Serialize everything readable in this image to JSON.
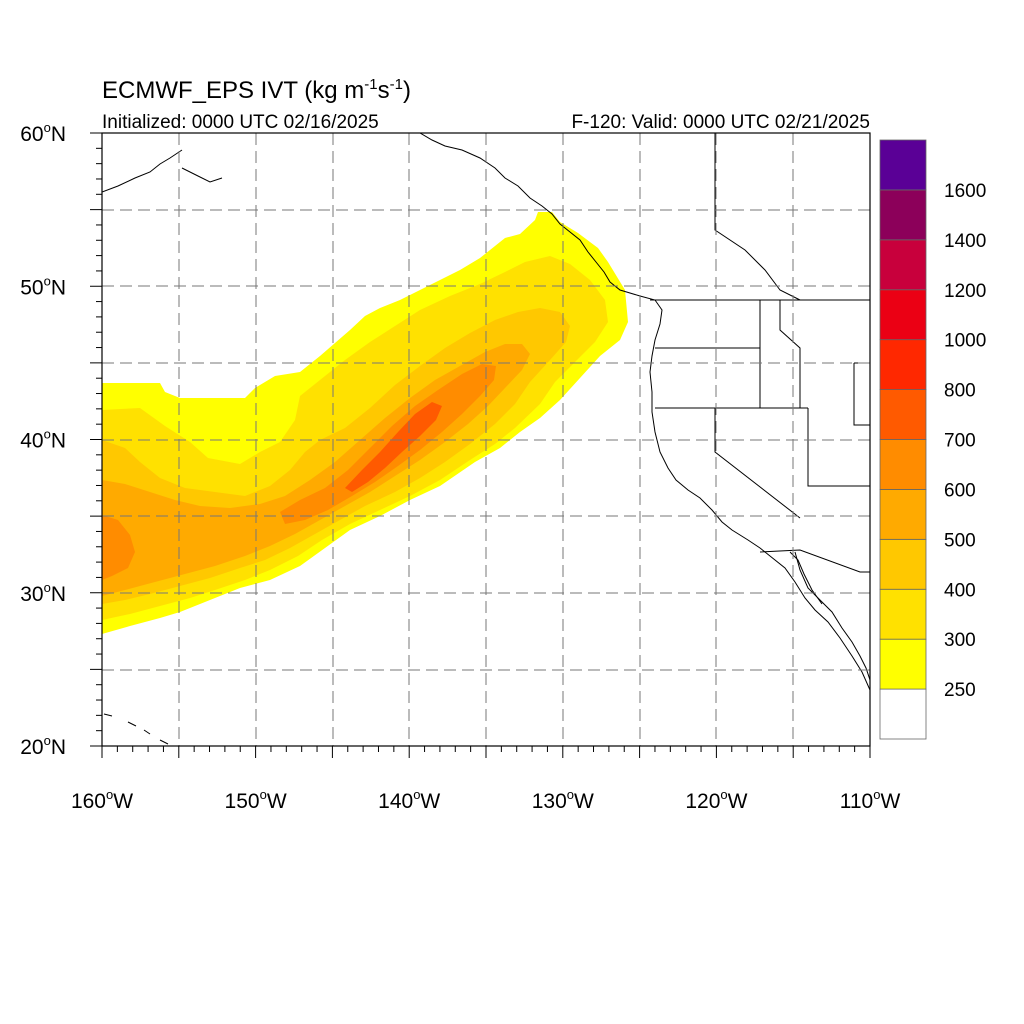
{
  "title": {
    "main": "ECMWF_EPS IVT",
    "units_prefix": "(kg m",
    "units_exp1": "-1",
    "units_mid": "s",
    "units_exp2": "-1",
    "units_suffix": ")"
  },
  "subtitle_left": "Initialized: 0000 UTC 02/16/2025",
  "subtitle_right": "F-120: Valid: 0000 UTC 02/21/2025",
  "map": {
    "lon_range": [
      -160,
      -110
    ],
    "lat_range": [
      20,
      60
    ],
    "grid": true,
    "lat_labels": [
      "20",
      "30",
      "40",
      "50",
      "60"
    ],
    "lat_hemi": "N",
    "lon_labels": [
      "160",
      "150",
      "140",
      "130",
      "120",
      "110"
    ],
    "lon_hemi": "W",
    "degree_symbol": "o"
  },
  "colorbar": {
    "labels": [
      "250",
      "300",
      "400",
      "500",
      "600",
      "700",
      "800",
      "1000",
      "1200",
      "1400",
      "1600"
    ],
    "colors": [
      "#ffffff",
      "#ffff00",
      "#ffe100",
      "#ffc800",
      "#ffaa00",
      "#ff8c00",
      "#ff5a00",
      "#ff2800",
      "#eb0014",
      "#c8003c",
      "#8c005a",
      "#5a0096"
    ]
  },
  "plume": {
    "description_levels": [
      "250-300",
      "300-400",
      "400-500",
      "500-600",
      "600-700",
      "700-800"
    ]
  }
}
